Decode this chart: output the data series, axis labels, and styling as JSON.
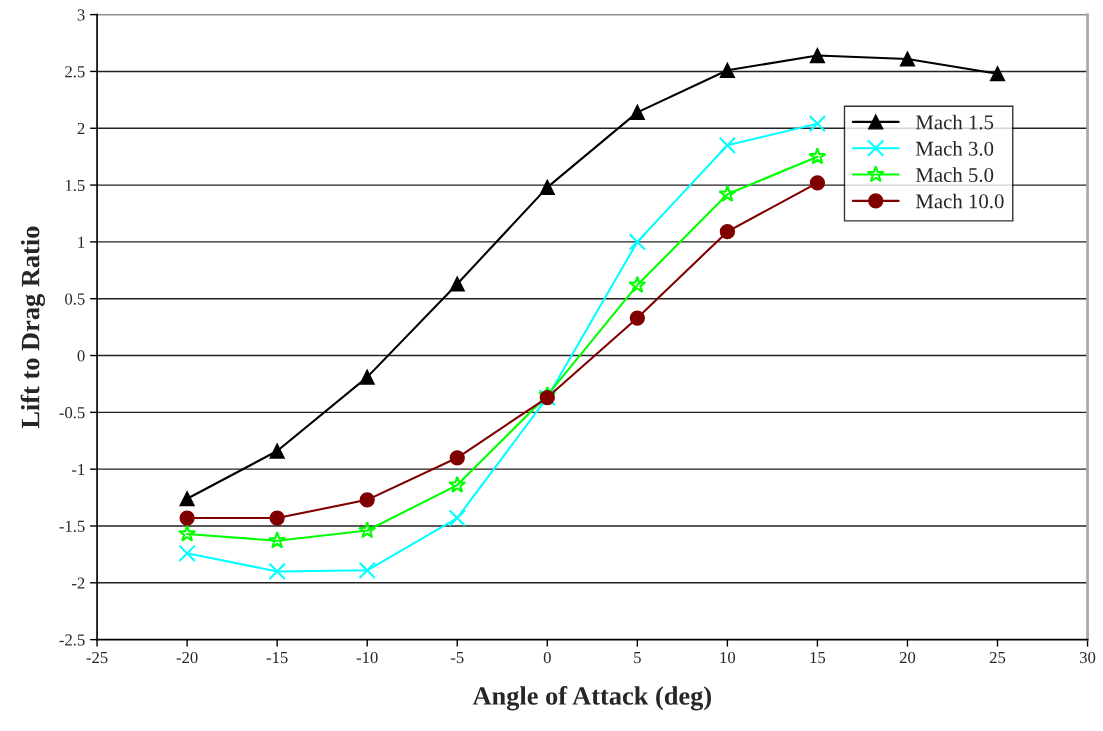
{
  "chart_data": {
    "type": "line",
    "xlabel": "Angle of Attack (deg)",
    "ylabel": "Lift to Drag Ratio",
    "x": [
      -20,
      -15,
      -10,
      -5,
      0,
      5,
      10,
      15,
      20,
      25
    ],
    "series": [
      {
        "name": "Mach 1.5",
        "color": "#000000",
        "marker": "triangle",
        "values": [
          -1.26,
          -0.84,
          -0.19,
          0.63,
          1.48,
          2.14,
          2.51,
          2.64,
          2.61,
          2.48
        ]
      },
      {
        "name": "Mach 3.0",
        "color": "#00ffff",
        "marker": "cross",
        "values": [
          -1.74,
          -1.9,
          -1.89,
          -1.43,
          -0.37,
          1.0,
          1.85,
          2.04,
          null,
          null
        ]
      },
      {
        "name": "Mach 5.0",
        "color": "#00ff00",
        "marker": "star",
        "values": [
          -1.57,
          -1.63,
          -1.54,
          -1.14,
          -0.35,
          0.62,
          1.42,
          1.75,
          null,
          null
        ]
      },
      {
        "name": "Mach 10.0",
        "color": "#800000",
        "marker": "circle",
        "values": [
          -1.43,
          -1.43,
          -1.27,
          -0.9,
          -0.37,
          0.33,
          1.09,
          1.52,
          null,
          null
        ]
      }
    ],
    "xlim": [
      -25,
      30
    ],
    "xticks": [
      -25,
      -20,
      -15,
      -10,
      -5,
      0,
      5,
      10,
      15,
      20,
      25,
      30
    ],
    "ylim": [
      -2.5,
      3
    ],
    "yticks": [
      -2.5,
      -2,
      -1.5,
      -1,
      -0.5,
      0,
      0.5,
      1,
      1.5,
      2,
      2.5,
      3
    ],
    "grid": "y",
    "legend": "top right",
    "line_style": "solid"
  }
}
